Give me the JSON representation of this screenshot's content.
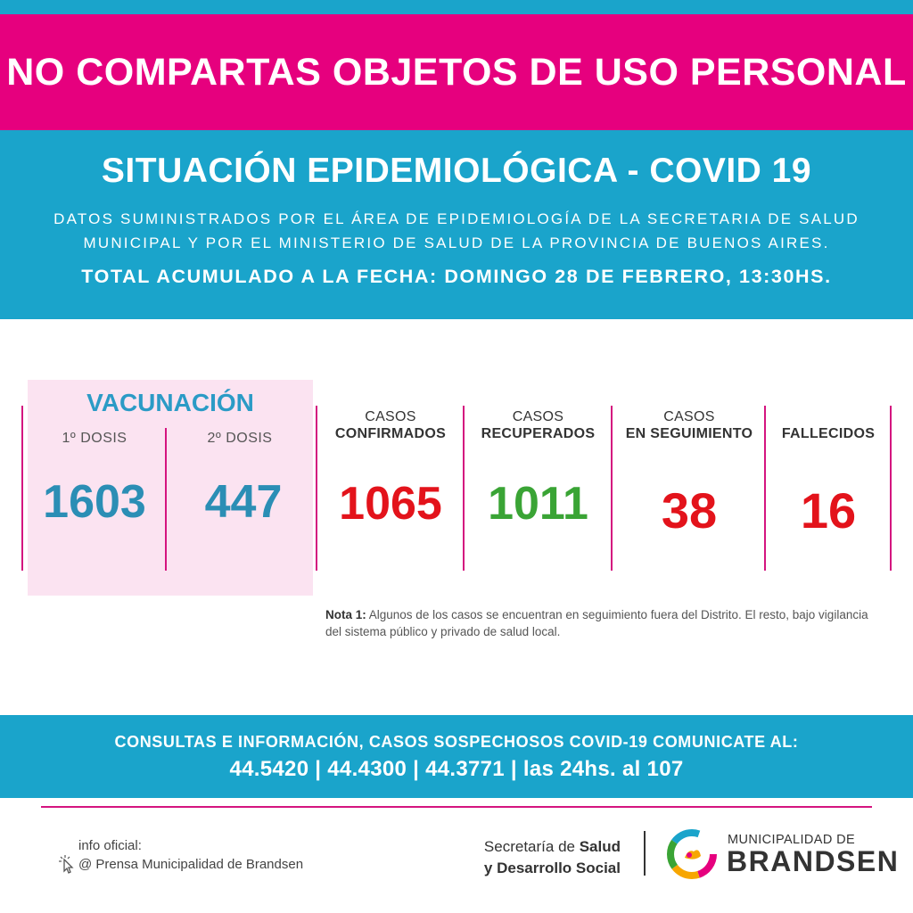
{
  "headline": "NO COMPARTAS OBJETOS DE USO PERSONAL",
  "title": "SITUACIÓN EPIDEMIOLÓGICA - COVID 19",
  "source": "DATOS SUMINISTRADOS POR EL ÁREA DE EPIDEMIOLOGÍA DE LA SECRETARIA DE SALUD MUNICIPAL Y POR EL MINISTERIO DE SALUD DE LA PROVINCIA DE BUENOS AIRES.",
  "date_line": "TOTAL ACUMULADO A LA FECHA: DOMINGO 28 DE FEBRERO, 13:30HS.",
  "vaccination": {
    "title": "VACUNACIÓN",
    "dose1_label": "1º DOSIS",
    "dose1_value": "1603",
    "dose2_label": "2º DOSIS",
    "dose2_value": "447"
  },
  "stats": {
    "confirmed": {
      "label_top": "CASOS",
      "label_bottom": "CONFIRMADOS",
      "value": "1065"
    },
    "recovered": {
      "label_top": "CASOS",
      "label_bottom": "RECUPERADOS",
      "value": "1011"
    },
    "monitoring": {
      "label_top": "CASOS",
      "label_bottom": "EN SEGUIMIENTO",
      "value": "38"
    },
    "deaths": {
      "label_bottom": "FALLECIDOS",
      "value": "16"
    }
  },
  "note": {
    "label": "Nota 1:",
    "text": " Algunos de los casos se encuentran en seguimiento fuera del Distrito. El resto, bajo vigilancia del sistema público y privado de salud local."
  },
  "contact": {
    "line": "CONSULTAS E INFORMACIÓN, CASOS SOSPECHOSOS COVID-19 COMUNICATE AL:",
    "phones": "44.5420 | 44.4300 | 44.3771 | las 24hs. al 107"
  },
  "footer": {
    "info_label": "info oficial:",
    "info_handle": "@ Prensa Municipalidad de Brandsen",
    "secretaria_line1_a": "Secretaría de ",
    "secretaria_line1_b": "Salud",
    "secretaria_line2": "y Desarrollo Social",
    "muni_small": "MUNICIPALIDAD DE",
    "muni_big": "BRANDSEN"
  },
  "colors": {
    "pink": "#e6007e",
    "cyan": "#1aa4cb",
    "red": "#e3131b",
    "green": "#3aa435",
    "blue_number": "#2b8eb5"
  },
  "icons": {
    "info_icon": "pointer-cursor-icon",
    "logo": "municipal-logo-icon"
  }
}
